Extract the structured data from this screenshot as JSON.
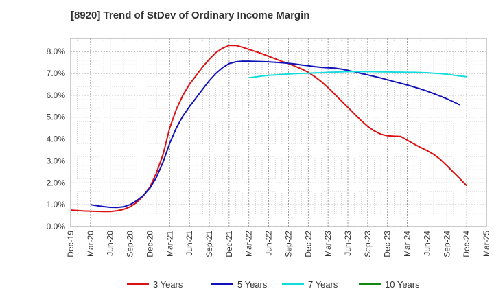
{
  "chart_data": {
    "type": "line",
    "title": "[8920]  Trend of StDev of Ordinary Income Margin",
    "xlabel": "",
    "ylabel": "",
    "x_ticks": [
      "Dec-19",
      "Mar-20",
      "Jun-20",
      "Sep-20",
      "Dec-20",
      "Mar-21",
      "Jun-21",
      "Sep-21",
      "Dec-21",
      "Mar-22",
      "Jun-22",
      "Sep-22",
      "Dec-22",
      "Mar-23",
      "Jun-23",
      "Sep-23",
      "Dec-23",
      "Mar-24",
      "Jun-24",
      "Sep-24",
      "Dec-24",
      "Mar-25"
    ],
    "y_ticks": [
      "0.0%",
      "1.0%",
      "2.0%",
      "3.0%",
      "4.0%",
      "5.0%",
      "6.0%",
      "7.0%",
      "8.0%"
    ],
    "ylim": [
      0,
      8.6
    ],
    "grid": true,
    "legend_position": "bottom",
    "series": [
      {
        "name": "3 Years",
        "color": "#dd1111",
        "points": [
          [
            "Dec-19",
            0.75
          ],
          [
            "Jan-20",
            0.73
          ],
          [
            "Feb-20",
            0.71
          ],
          [
            "Mar-20",
            0.7
          ],
          [
            "Apr-20",
            0.69
          ],
          [
            "May-20",
            0.68
          ],
          [
            "Jun-20",
            0.68
          ],
          [
            "Jul-20",
            0.72
          ],
          [
            "Aug-20",
            0.78
          ],
          [
            "Sep-20",
            0.9
          ],
          [
            "Oct-20",
            1.1
          ],
          [
            "Nov-20",
            1.4
          ],
          [
            "Dec-20",
            1.8
          ],
          [
            "Jan-21",
            2.45
          ],
          [
            "Feb-21",
            3.3
          ],
          [
            "Mar-21",
            4.5
          ],
          [
            "Apr-21",
            5.35
          ],
          [
            "May-21",
            6.0
          ],
          [
            "Jun-21",
            6.5
          ],
          [
            "Jul-21",
            6.9
          ],
          [
            "Aug-21",
            7.3
          ],
          [
            "Sep-21",
            7.65
          ],
          [
            "Oct-21",
            7.95
          ],
          [
            "Nov-21",
            8.15
          ],
          [
            "Dec-21",
            8.28
          ],
          [
            "Jan-22",
            8.28
          ],
          [
            "Feb-22",
            8.2
          ],
          [
            "Mar-22",
            8.1
          ],
          [
            "Apr-22",
            8.0
          ],
          [
            "May-22",
            7.9
          ],
          [
            "Jun-22",
            7.78
          ],
          [
            "Jul-22",
            7.67
          ],
          [
            "Aug-22",
            7.55
          ],
          [
            "Sep-22",
            7.45
          ],
          [
            "Oct-22",
            7.33
          ],
          [
            "Nov-22",
            7.2
          ],
          [
            "Dec-22",
            7.05
          ],
          [
            "Jan-23",
            6.85
          ],
          [
            "Feb-23",
            6.62
          ],
          [
            "Mar-23",
            6.35
          ],
          [
            "Apr-23",
            6.05
          ],
          [
            "May-23",
            5.75
          ],
          [
            "Jun-23",
            5.45
          ],
          [
            "Jul-23",
            5.15
          ],
          [
            "Aug-23",
            4.85
          ],
          [
            "Sep-23",
            4.58
          ],
          [
            "Oct-23",
            4.37
          ],
          [
            "Nov-23",
            4.22
          ],
          [
            "Dec-23",
            4.15
          ],
          [
            "Jan-24",
            4.13
          ],
          [
            "Feb-24",
            4.12
          ],
          [
            "Mar-24",
            3.95
          ],
          [
            "Apr-24",
            3.78
          ],
          [
            "May-24",
            3.62
          ],
          [
            "Jun-24",
            3.47
          ],
          [
            "Jul-24",
            3.3
          ],
          [
            "Aug-24",
            3.07
          ],
          [
            "Sep-24",
            2.78
          ],
          [
            "Oct-24",
            2.48
          ],
          [
            "Nov-24",
            2.18
          ],
          [
            "Dec-24",
            1.87
          ]
        ]
      },
      {
        "name": "5 Years",
        "color": "#1111bb",
        "points": [
          [
            "Mar-20",
            1.0
          ],
          [
            "Apr-20",
            0.95
          ],
          [
            "May-20",
            0.91
          ],
          [
            "Jun-20",
            0.88
          ],
          [
            "Jul-20",
            0.87
          ],
          [
            "Aug-20",
            0.9
          ],
          [
            "Sep-20",
            1.0
          ],
          [
            "Oct-20",
            1.18
          ],
          [
            "Nov-20",
            1.42
          ],
          [
            "Dec-20",
            1.75
          ],
          [
            "Jan-21",
            2.25
          ],
          [
            "Feb-21",
            2.95
          ],
          [
            "Mar-21",
            3.8
          ],
          [
            "Apr-21",
            4.5
          ],
          [
            "May-21",
            5.05
          ],
          [
            "Jun-21",
            5.48
          ],
          [
            "Jul-21",
            5.88
          ],
          [
            "Aug-21",
            6.28
          ],
          [
            "Sep-21",
            6.67
          ],
          [
            "Oct-21",
            7.0
          ],
          [
            "Nov-21",
            7.26
          ],
          [
            "Dec-21",
            7.45
          ],
          [
            "Jan-22",
            7.53
          ],
          [
            "Feb-22",
            7.56
          ],
          [
            "Mar-22",
            7.56
          ],
          [
            "Apr-22",
            7.55
          ],
          [
            "May-22",
            7.54
          ],
          [
            "Jun-22",
            7.53
          ],
          [
            "Jul-22",
            7.51
          ],
          [
            "Aug-22",
            7.49
          ],
          [
            "Sep-22",
            7.46
          ],
          [
            "Oct-22",
            7.43
          ],
          [
            "Nov-22",
            7.39
          ],
          [
            "Dec-22",
            7.35
          ],
          [
            "Jan-23",
            7.31
          ],
          [
            "Feb-23",
            7.28
          ],
          [
            "Mar-23",
            7.26
          ],
          [
            "Apr-23",
            7.24
          ],
          [
            "May-23",
            7.2
          ],
          [
            "Jun-23",
            7.14
          ],
          [
            "Jul-23",
            7.07
          ],
          [
            "Aug-23",
            7.0
          ],
          [
            "Sep-23",
            6.93
          ],
          [
            "Oct-23",
            6.86
          ],
          [
            "Nov-23",
            6.79
          ],
          [
            "Dec-23",
            6.71
          ],
          [
            "Jan-24",
            6.63
          ],
          [
            "Feb-24",
            6.55
          ],
          [
            "Mar-24",
            6.47
          ],
          [
            "Apr-24",
            6.38
          ],
          [
            "May-24",
            6.29
          ],
          [
            "Jun-24",
            6.19
          ],
          [
            "Jul-24",
            6.08
          ],
          [
            "Aug-24",
            5.96
          ],
          [
            "Sep-24",
            5.84
          ],
          [
            "Oct-24",
            5.7
          ],
          [
            "Nov-24",
            5.56
          ]
        ]
      },
      {
        "name": "7 Years",
        "color": "#11dddd",
        "points": [
          [
            "Mar-22",
            6.8
          ],
          [
            "Apr-22",
            6.84
          ],
          [
            "May-22",
            6.88
          ],
          [
            "Jun-22",
            6.91
          ],
          [
            "Jul-22",
            6.93
          ],
          [
            "Aug-22",
            6.95
          ],
          [
            "Sep-22",
            6.97
          ],
          [
            "Oct-22",
            6.99
          ],
          [
            "Nov-22",
            7.0
          ],
          [
            "Dec-22",
            7.01
          ],
          [
            "Jan-23",
            7.02
          ],
          [
            "Feb-23",
            7.03
          ],
          [
            "Mar-23",
            7.05
          ],
          [
            "Apr-23",
            7.06
          ],
          [
            "May-23",
            7.07
          ],
          [
            "Jun-23",
            7.08
          ],
          [
            "Jul-23",
            7.08
          ],
          [
            "Aug-23",
            7.08
          ],
          [
            "Sep-23",
            7.08
          ],
          [
            "Oct-23",
            7.08
          ],
          [
            "Nov-23",
            7.07
          ],
          [
            "Dec-23",
            7.07
          ],
          [
            "Jan-24",
            7.06
          ],
          [
            "Feb-24",
            7.06
          ],
          [
            "Mar-24",
            7.05
          ],
          [
            "Apr-24",
            7.05
          ],
          [
            "May-24",
            7.04
          ],
          [
            "Jun-24",
            7.03
          ],
          [
            "Jul-24",
            7.01
          ],
          [
            "Aug-24",
            6.99
          ],
          [
            "Sep-24",
            6.96
          ],
          [
            "Oct-24",
            6.92
          ],
          [
            "Nov-24",
            6.88
          ],
          [
            "Dec-24",
            6.85
          ]
        ]
      },
      {
        "name": "10 Years",
        "color": "#118811",
        "points": []
      }
    ]
  }
}
